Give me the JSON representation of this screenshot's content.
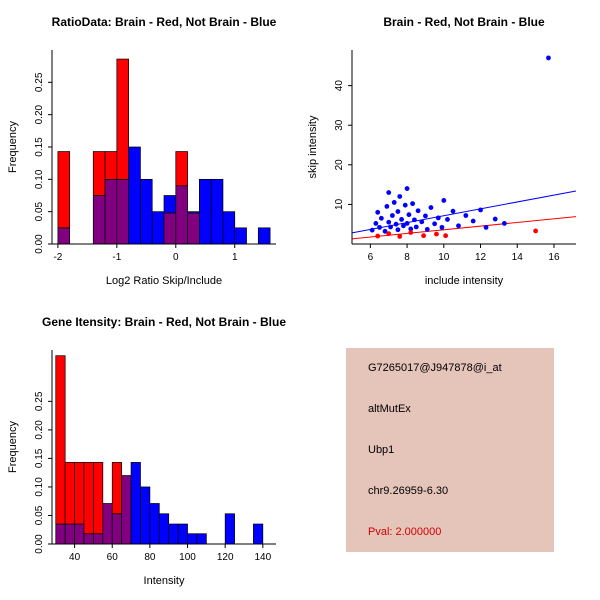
{
  "page": {
    "background": "#ffffff"
  },
  "info_box": {
    "bg": "#e5c4ba",
    "text_color": "#000000",
    "pval_color": "#d40000",
    "lines": [
      {
        "text": "G7265017@J947878@i_at"
      },
      {
        "text": "altMutEx"
      },
      {
        "text": "Ubp1"
      },
      {
        "text": "chr9.26959-6.30"
      },
      {
        "text": "Pval: 2.000000"
      }
    ]
  },
  "chart_data": [
    {
      "type": "bar",
      "title": "RatioData: Brain - Red, Not Brain - Blue",
      "xlabel": "Log2 Ratio Skip/Include",
      "ylabel": "Frequency",
      "bin_start": -2.0,
      "bin_width": 0.2,
      "xlim": [
        -2.1,
        1.7
      ],
      "ylim": [
        0,
        0.3
      ],
      "xticks": [
        -2,
        -1,
        0,
        1
      ],
      "xtick_labels": [
        "-2",
        "-1",
        "0",
        "1"
      ],
      "yticks": [
        0,
        0.05,
        0.1,
        0.15,
        0.2,
        0.25
      ],
      "ytick_labels": [
        "0.00",
        "0.05",
        "0.10",
        "0.15",
        "0.20",
        "0.25"
      ],
      "colors": {
        "red": "#ff0000",
        "blue": "#0000ff",
        "overlap": "#800080"
      },
      "series": [
        {
          "name": "Brain (red)",
          "values": [
            0.143,
            0,
            0,
            0.143,
            0.143,
            0.286,
            0,
            0,
            0,
            0.048,
            0.143,
            0.048,
            0,
            0,
            0,
            0,
            0,
            0
          ]
        },
        {
          "name": "Not Brain (blue)",
          "values": [
            0.025,
            0,
            0,
            0.075,
            0.1,
            0.1,
            0.15,
            0.1,
            0.05,
            0.075,
            0.09,
            0.05,
            0.1,
            0.1,
            0.05,
            0.025,
            0,
            0.025
          ]
        }
      ]
    },
    {
      "type": "scatter",
      "title": "Brain - Red, Not Brain - Blue",
      "xlabel": "include intensity",
      "ylabel": "skip intensity",
      "xlim": [
        5,
        17.2
      ],
      "ylim": [
        0,
        49
      ],
      "xticks": [
        6,
        8,
        10,
        12,
        14,
        16
      ],
      "xtick_labels": [
        "6",
        "8",
        "10",
        "12",
        "14",
        "16"
      ],
      "yticks": [
        10,
        20,
        30,
        40
      ],
      "ytick_labels": [
        "10",
        "20",
        "30",
        "40"
      ],
      "series": [
        {
          "name": "Not Brain (blue)",
          "color": "#0000ff",
          "points": [
            [
              6.1,
              3.5
            ],
            [
              6.3,
              5.2
            ],
            [
              6.4,
              8
            ],
            [
              6.5,
              4.2
            ],
            [
              6.6,
              6.5
            ],
            [
              6.8,
              3.2
            ],
            [
              6.9,
              9.5
            ],
            [
              7,
              5.5
            ],
            [
              7,
              13
            ],
            [
              7.1,
              4.3
            ],
            [
              7.2,
              7.2
            ],
            [
              7.3,
              10.5
            ],
            [
              7.4,
              5
            ],
            [
              7.5,
              3.6
            ],
            [
              7.5,
              8.2
            ],
            [
              7.6,
              12
            ],
            [
              7.7,
              6.2
            ],
            [
              7.8,
              4.6
            ],
            [
              7.9,
              9.8
            ],
            [
              8,
              5.2
            ],
            [
              8,
              14
            ],
            [
              8.1,
              7.4
            ],
            [
              8.2,
              3.8
            ],
            [
              8.3,
              10.2
            ],
            [
              8.4,
              6.1
            ],
            [
              8.5,
              4.3
            ],
            [
              8.6,
              8.4
            ],
            [
              8.8,
              5.6
            ],
            [
              9,
              7.1
            ],
            [
              9.1,
              3.7
            ],
            [
              9.3,
              9.2
            ],
            [
              9.5,
              5.1
            ],
            [
              9.7,
              6.6
            ],
            [
              9.9,
              4.2
            ],
            [
              10,
              11
            ],
            [
              10.2,
              6.2
            ],
            [
              10.5,
              8.3
            ],
            [
              10.8,
              4.6
            ],
            [
              11.2,
              7.2
            ],
            [
              11.6,
              5.8
            ],
            [
              12,
              8.6
            ],
            [
              12.3,
              4.2
            ],
            [
              12.8,
              6.3
            ],
            [
              13.3,
              5.2
            ],
            [
              15.7,
              47
            ]
          ]
        },
        {
          "name": "Brain (red)",
          "color": "#ff0000",
          "points": [
            [
              6.4,
              2
            ],
            [
              7,
              2.6
            ],
            [
              7.6,
              1.9
            ],
            [
              8.2,
              2.9
            ],
            [
              8.9,
              2.1
            ],
            [
              9.6,
              2.5
            ],
            [
              10.1,
              2.1
            ],
            [
              15,
              3.3
            ]
          ]
        }
      ],
      "fit_lines": [
        {
          "name": "not-brain-fit",
          "color": "#0000ff",
          "x": [
            5,
            17.2
          ],
          "y": [
            2.8,
            13.4
          ]
        },
        {
          "name": "brain-fit",
          "color": "#ff0000",
          "x": [
            5,
            17.2
          ],
          "y": [
            1.3,
            6.9
          ]
        }
      ]
    },
    {
      "type": "bar",
      "title": "Gene Itensity: Brain - Red, Not Brain - Blue",
      "xlabel": "Intensity",
      "ylabel": "Frequency",
      "bin_start": 30,
      "bin_width": 5,
      "xlim": [
        28,
        147
      ],
      "ylim": [
        0,
        0.34
      ],
      "xticks": [
        40,
        60,
        80,
        100,
        120,
        140
      ],
      "xtick_labels": [
        "40",
        "60",
        "80",
        "100",
        "120",
        "140"
      ],
      "yticks": [
        0,
        0.05,
        0.1,
        0.15,
        0.2,
        0.25
      ],
      "ytick_labels": [
        "0.00",
        "0.05",
        "0.10",
        "0.15",
        "0.20",
        "0.25"
      ],
      "colors": {
        "red": "#ff0000",
        "blue": "#0000ff",
        "overlap": "#800080"
      },
      "series": [
        {
          "name": "Brain (red)",
          "values": [
            0.33,
            0.143,
            0.143,
            0.143,
            0.143,
            0.071,
            0.143,
            0.12,
            0,
            0,
            0,
            0,
            0,
            0,
            0,
            0,
            0,
            0,
            0,
            0,
            0,
            0,
            0
          ]
        },
        {
          "name": "Not Brain (blue)",
          "values": [
            0.035,
            0.035,
            0.035,
            0.018,
            0.018,
            0.071,
            0.053,
            0.12,
            0.143,
            0.1,
            0.071,
            0.053,
            0.035,
            0.035,
            0.018,
            0.018,
            0,
            0,
            0.053,
            0,
            0,
            0.035,
            0
          ]
        }
      ]
    }
  ]
}
